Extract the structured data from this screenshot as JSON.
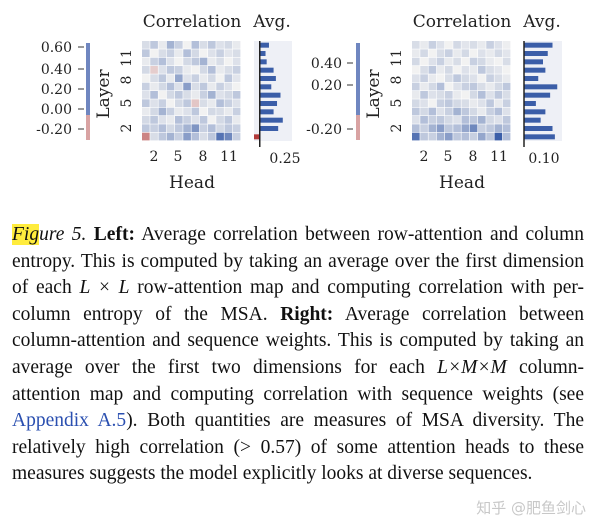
{
  "figure": {
    "left_panel": {
      "heatmap_title": "Correlation",
      "bar_title": "Avg.",
      "ylabel": "Layer",
      "xlabel": "Head",
      "colorbar_ticks": [
        "0.60",
        "0.40",
        "0.20",
        "0.00",
        "-0.20"
      ],
      "x_ticks": [
        "2",
        "5",
        "8",
        "11"
      ],
      "y_ticks": [
        "2",
        "5",
        "8",
        "11"
      ],
      "bar_xtick": "0.25"
    },
    "right_panel": {
      "heatmap_title": "Correlation",
      "bar_title": "Avg.",
      "ylabel": "Layer",
      "xlabel": "Head",
      "colorbar_ticks": [
        "0.40",
        "0.20",
        "-0.20"
      ],
      "x_ticks": [
        "2",
        "5",
        "8",
        "11"
      ],
      "y_ticks": [
        "2",
        "5",
        "8",
        "11"
      ],
      "bar_xtick": "0.10"
    }
  },
  "chart_data": [
    {
      "type": "heatmap",
      "title": "Correlation",
      "xlabel": "Head",
      "ylabel": "Layer",
      "colorbar_range": [
        -0.2,
        0.6
      ],
      "cmap_colors": {
        "positive": "#3b5ea8",
        "neutral": "#f2f2f2",
        "negative": "#b23a3a"
      },
      "values": [
        [
          0.05,
          0.1,
          0.02,
          0.15,
          0.08,
          0.0,
          0.12,
          0.05,
          0.1,
          0.04,
          0.06,
          0.02
        ],
        [
          0.1,
          0.0,
          0.05,
          0.08,
          0.02,
          0.12,
          0.06,
          0.0,
          0.04,
          0.08,
          0.03,
          0.05
        ],
        [
          0.02,
          0.08,
          0.12,
          0.04,
          0.0,
          0.06,
          0.1,
          0.15,
          0.02,
          0.05,
          0.0,
          0.04
        ],
        [
          0.06,
          -0.05,
          0.04,
          0.1,
          0.08,
          0.02,
          0.0,
          0.06,
          0.12,
          0.02,
          0.05,
          0.08
        ],
        [
          0.0,
          0.05,
          0.1,
          0.02,
          0.18,
          0.04,
          0.08,
          0.02,
          0.06,
          0.0,
          0.1,
          0.03
        ],
        [
          0.08,
          0.02,
          0.06,
          0.12,
          0.04,
          0.2,
          0.05,
          0.1,
          0.02,
          0.08,
          0.04,
          0.0
        ],
        [
          0.04,
          0.12,
          0.0,
          0.06,
          0.1,
          0.05,
          0.02,
          0.08,
          0.15,
          0.04,
          0.06,
          0.1
        ],
        [
          0.1,
          0.04,
          0.08,
          0.0,
          0.06,
          0.1,
          -0.06,
          0.05,
          0.02,
          0.12,
          0.08,
          0.04
        ],
        [
          0.02,
          0.06,
          0.15,
          0.08,
          0.02,
          0.04,
          0.1,
          0.0,
          0.06,
          0.05,
          0.02,
          0.08
        ],
        [
          0.06,
          0.1,
          0.04,
          0.02,
          0.12,
          0.08,
          0.04,
          0.1,
          0.0,
          0.06,
          0.1,
          0.02
        ],
        [
          0.1,
          0.08,
          0.12,
          0.06,
          0.1,
          0.15,
          0.22,
          0.08,
          0.12,
          0.06,
          0.1,
          0.08
        ],
        [
          -0.15,
          0.05,
          0.1,
          0.15,
          0.08,
          0.2,
          0.12,
          0.05,
          0.1,
          0.3,
          0.25,
          0.08
        ]
      ]
    },
    {
      "type": "bar",
      "title": "Avg.",
      "orientation": "horizontal",
      "categories": [
        "1",
        "2",
        "3",
        "4",
        "5",
        "6",
        "7",
        "8",
        "9",
        "10",
        "11",
        "12"
      ],
      "values": [
        0.08,
        0.05,
        0.06,
        0.12,
        0.14,
        0.1,
        0.18,
        0.15,
        0.12,
        0.2,
        0.16,
        -0.05
      ],
      "xlim": [
        -0.05,
        0.28
      ],
      "bar_color": "#3b5ea8",
      "negative_color": "#b23a3a"
    },
    {
      "type": "heatmap",
      "title": "Correlation",
      "xlabel": "Head",
      "ylabel": "Layer",
      "colorbar_range": [
        -0.2,
        0.45
      ],
      "values": [
        [
          0.05,
          0.02,
          0.08,
          0.04,
          0.0,
          0.06,
          0.03,
          0.05,
          0.02,
          0.08,
          0.04,
          0.01
        ],
        [
          0.02,
          0.06,
          0.0,
          0.05,
          0.08,
          0.02,
          0.06,
          0.0,
          0.04,
          0.02,
          0.06,
          0.03
        ],
        [
          0.06,
          0.0,
          0.04,
          0.08,
          0.02,
          0.05,
          0.0,
          0.08,
          0.06,
          0.02,
          0.0,
          0.05
        ],
        [
          0.0,
          0.05,
          0.1,
          0.02,
          0.06,
          0.0,
          0.04,
          0.02,
          0.1,
          0.05,
          0.03,
          0.0
        ],
        [
          0.04,
          0.08,
          0.02,
          0.0,
          0.05,
          0.1,
          0.06,
          0.04,
          0.0,
          0.08,
          0.05,
          0.02
        ],
        [
          0.08,
          0.02,
          0.06,
          0.12,
          0.0,
          0.04,
          0.08,
          0.1,
          0.05,
          0.02,
          0.06,
          0.1
        ],
        [
          0.02,
          0.1,
          0.04,
          0.05,
          0.08,
          0.02,
          0.0,
          0.06,
          0.12,
          0.04,
          0.1,
          0.05
        ],
        [
          0.06,
          0.04,
          0.0,
          0.08,
          0.1,
          0.06,
          0.05,
          0.02,
          0.04,
          0.1,
          0.02,
          0.08
        ],
        [
          0.1,
          0.06,
          0.12,
          0.04,
          0.08,
          0.15,
          0.1,
          0.06,
          0.02,
          0.08,
          0.12,
          0.04
        ],
        [
          0.04,
          0.12,
          0.08,
          0.1,
          0.06,
          0.04,
          0.12,
          0.1,
          0.15,
          0.06,
          0.04,
          0.1
        ],
        [
          0.12,
          0.08,
          0.15,
          0.2,
          0.1,
          0.12,
          0.18,
          0.25,
          0.08,
          0.1,
          0.15,
          0.12
        ],
        [
          0.3,
          0.1,
          0.08,
          0.15,
          0.2,
          0.1,
          0.12,
          0.08,
          0.18,
          0.1,
          0.35,
          0.12
        ]
      ]
    },
    {
      "type": "bar",
      "title": "Avg.",
      "orientation": "horizontal",
      "categories": [
        "1",
        "2",
        "3",
        "4",
        "5",
        "6",
        "7",
        "8",
        "9",
        "10",
        "11",
        "12"
      ],
      "values": [
        0.12,
        0.1,
        0.08,
        0.09,
        0.06,
        0.14,
        0.11,
        0.05,
        0.09,
        0.07,
        0.12,
        0.13
      ],
      "xlim": [
        0,
        0.16
      ],
      "bar_color": "#3b5ea8"
    }
  ],
  "caption": {
    "fig_prefix": "Fig",
    "fig_suffix": "ure 5.",
    "left_label": "Left:",
    "left_text": "Average correlation between row-attention and column entropy. This is computed by taking an average over the first dimension of each",
    "math_1": "L × L",
    "left_text_2": "row-attention map and computing correlation with per-column entropy of the MSA.",
    "right_label": "Right:",
    "right_text": "Average correlation between column-attention and sequence weights. This is computed by taking an average over the first two dimensions for each",
    "math_2": "L×M×M",
    "right_text_2": "column-attention map and computing correlation with sequence weights (see",
    "link": "Appendix A.5",
    "right_text_3": "). Both quantities are measures of MSA diversity. The relatively high correlation (> 0.57) of some attention heads to these measures suggests the model explicitly looks at diverse sequences."
  },
  "watermark": "知乎 @肥鱼剑心"
}
